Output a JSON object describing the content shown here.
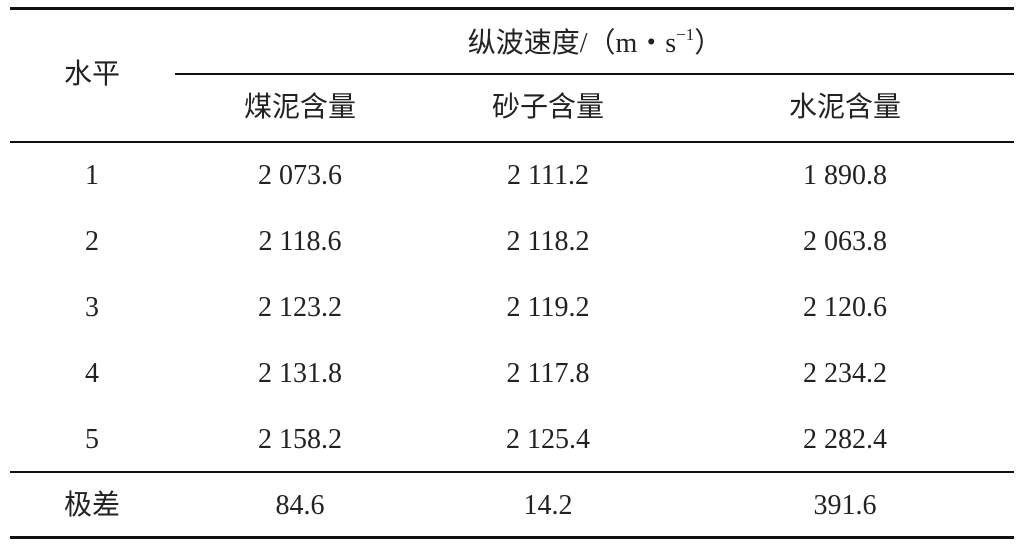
{
  "table": {
    "row_header": "水平",
    "group_header": {
      "text": "纵波速度/（m・s",
      "superscript": "−1",
      "suffix": "）"
    },
    "columns": [
      "煤泥含量",
      "砂子含量",
      "水泥含量"
    ],
    "rows": [
      [
        "1",
        "2 073.6",
        "2 111.2",
        "1 890.8"
      ],
      [
        "2",
        "2 118.6",
        "2 118.2",
        "2 063.8"
      ],
      [
        "3",
        "2 123.2",
        "2 119.2",
        "2 120.6"
      ],
      [
        "4",
        "2 131.8",
        "2 117.8",
        "2 234.2"
      ],
      [
        "5",
        "2 158.2",
        "2 125.4",
        "2 282.4"
      ]
    ],
    "footer": [
      "极差",
      "84.6",
      "14.2",
      "391.6"
    ]
  }
}
